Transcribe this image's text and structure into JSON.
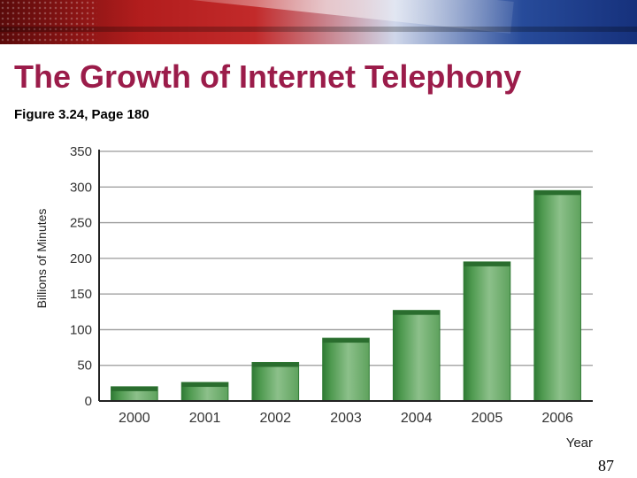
{
  "slide": {
    "title": "The Growth of Internet Telephony",
    "subtitle": "Figure 3.24, Page 180",
    "page_number": "87"
  },
  "colors": {
    "title": "#9b1c4a",
    "bar_light": "#8cc08a",
    "bar_dark": "#2f7a34",
    "bar_top": "#2a6d2e"
  },
  "chart_data": {
    "type": "bar",
    "title": "",
    "xlabel": "Year",
    "ylabel": "Billions of Minutes",
    "categories": [
      "2000",
      "2001",
      "2002",
      "2003",
      "2004",
      "2005",
      "2006"
    ],
    "values": [
      20,
      26,
      54,
      88,
      127,
      195,
      295
    ],
    "ylim": [
      0,
      350
    ],
    "yticks": [
      0,
      50,
      100,
      150,
      200,
      250,
      300,
      350
    ],
    "grid": true,
    "legend": "none"
  }
}
